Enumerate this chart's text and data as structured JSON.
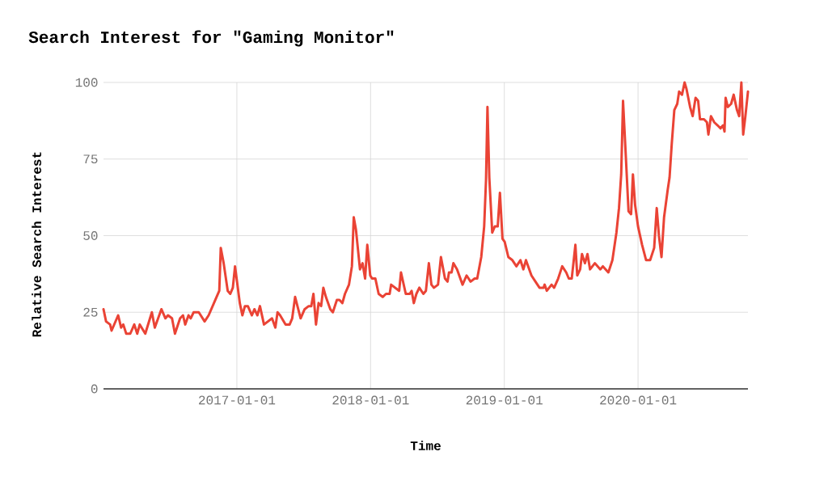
{
  "chart_data": {
    "type": "line",
    "title": "Search Interest for \"Gaming Monitor\"",
    "xlabel": "Time",
    "ylabel": "Relative Search Interest",
    "x": [
      "2016-01-03",
      "2016-01-10",
      "2016-01-21",
      "2016-01-25",
      "2016-02-12",
      "2016-02-20",
      "2016-02-26",
      "2016-03-05",
      "2016-03-16",
      "2016-03-27",
      "2016-04-04",
      "2016-04-11",
      "2016-04-26",
      "2016-05-14",
      "2016-05-22",
      "2016-06-09",
      "2016-06-20",
      "2016-06-27",
      "2016-07-08",
      "2016-07-16",
      "2016-07-30",
      "2016-08-07",
      "2016-08-13",
      "2016-08-22",
      "2016-08-28",
      "2016-09-05",
      "2016-09-19",
      "2016-10-05",
      "2016-10-16",
      "2016-11-03",
      "2016-11-14",
      "2016-11-18",
      "2016-11-26",
      "2016-12-07",
      "2016-12-14",
      "2016-12-21",
      "2016-12-27",
      "2017-01-09",
      "2017-01-16",
      "2017-01-23",
      "2017-01-31",
      "2017-02-11",
      "2017-02-18",
      "2017-02-26",
      "2017-03-05",
      "2017-03-16",
      "2017-03-27",
      "2017-04-07",
      "2017-04-16",
      "2017-04-22",
      "2017-04-29",
      "2017-05-14",
      "2017-05-25",
      "2017-06-01",
      "2017-06-09",
      "2017-06-24",
      "2017-07-05",
      "2017-07-16",
      "2017-07-23",
      "2017-07-29",
      "2017-08-05",
      "2017-08-12",
      "2017-08-19",
      "2017-08-25",
      "2017-09-01",
      "2017-09-13",
      "2017-09-20",
      "2017-10-01",
      "2017-10-08",
      "2017-10-16",
      "2017-10-23",
      "2017-11-03",
      "2017-11-11",
      "2017-11-16",
      "2017-11-22",
      "2017-12-03",
      "2017-12-10",
      "2017-12-17",
      "2017-12-23",
      "2017-12-31",
      "2018-01-05",
      "2018-01-14",
      "2018-01-23",
      "2018-02-03",
      "2018-02-12",
      "2018-02-22",
      "2018-02-26",
      "2018-03-09",
      "2018-03-20",
      "2018-03-25",
      "2018-04-07",
      "2018-04-18",
      "2018-04-23",
      "2018-04-29",
      "2018-05-06",
      "2018-05-14",
      "2018-05-25",
      "2018-06-01",
      "2018-06-09",
      "2018-06-16",
      "2018-06-23",
      "2018-07-04",
      "2018-07-12",
      "2018-07-23",
      "2018-07-30",
      "2018-08-03",
      "2018-08-10",
      "2018-08-15",
      "2018-08-25",
      "2018-09-09",
      "2018-09-20",
      "2018-10-01",
      "2018-10-12",
      "2018-10-19",
      "2018-10-30",
      "2018-11-07",
      "2018-11-12",
      "2018-11-16",
      "2018-11-21",
      "2018-11-29",
      "2018-12-06",
      "2018-12-14",
      "2018-12-20",
      "2018-12-27",
      "2019-01-02",
      "2019-01-12",
      "2019-01-23",
      "2019-02-03",
      "2019-02-14",
      "2019-02-22",
      "2019-03-01",
      "2019-03-16",
      "2019-03-27",
      "2019-04-07",
      "2019-04-18",
      "2019-04-21",
      "2019-04-27",
      "2019-05-10",
      "2019-05-17",
      "2019-05-28",
      "2019-06-08",
      "2019-06-19",
      "2019-06-26",
      "2019-07-04",
      "2019-07-14",
      "2019-07-19",
      "2019-07-27",
      "2019-08-01",
      "2019-08-09",
      "2019-08-16",
      "2019-08-23",
      "2019-09-05",
      "2019-09-20",
      "2019-09-27",
      "2019-10-12",
      "2019-10-23",
      "2019-11-03",
      "2019-11-10",
      "2019-11-16",
      "2019-11-21",
      "2019-11-29",
      "2019-12-06",
      "2019-12-13",
      "2019-12-18",
      "2019-12-24",
      "2020-01-01",
      "2020-01-12",
      "2020-01-23",
      "2020-02-03",
      "2020-02-14",
      "2020-02-21",
      "2020-02-27",
      "2020-03-05",
      "2020-03-12",
      "2020-03-22",
      "2020-03-27",
      "2020-04-02",
      "2020-04-09",
      "2020-04-17",
      "2020-04-22",
      "2020-04-30",
      "2020-05-07",
      "2020-05-12",
      "2020-05-22",
      "2020-05-29",
      "2020-06-06",
      "2020-06-13",
      "2020-06-18",
      "2020-06-29",
      "2020-07-07",
      "2020-07-11",
      "2020-07-18",
      "2020-07-27",
      "2020-08-05",
      "2020-08-13",
      "2020-08-20",
      "2020-08-24",
      "2020-08-27",
      "2020-09-02",
      "2020-09-11",
      "2020-09-18",
      "2020-09-27",
      "2020-10-03",
      "2020-10-09",
      "2020-10-14",
      "2020-10-20",
      "2020-10-27"
    ],
    "series": [
      {
        "color": "#ea4335",
        "values": [
          26,
          22,
          21,
          19,
          24,
          20,
          21,
          18,
          18,
          21,
          18,
          21,
          18,
          25,
          20,
          26,
          23,
          24,
          23,
          18,
          23,
          24,
          21,
          24,
          23,
          25,
          25,
          22,
          24,
          29,
          32,
          46,
          41,
          32,
          31,
          33,
          40,
          28,
          24,
          27,
          27,
          24,
          26,
          24,
          27,
          21,
          22,
          23,
          20,
          25,
          24,
          21,
          21,
          23,
          30,
          23,
          26,
          27,
          27,
          31,
          21,
          28,
          27,
          33,
          30,
          26,
          25,
          29,
          29,
          28,
          31,
          34,
          40,
          56,
          52,
          39,
          41,
          36,
          47,
          37,
          36,
          36,
          31,
          30,
          31,
          31,
          34,
          33,
          32,
          38,
          31,
          31,
          32,
          28,
          31,
          33,
          31,
          32,
          41,
          34,
          33,
          34,
          43,
          36,
          35,
          38,
          38,
          41,
          39,
          34,
          37,
          35,
          36,
          36,
          43,
          53,
          68,
          92,
          69,
          51,
          53,
          53,
          64,
          49,
          48,
          43,
          42,
          40,
          42,
          39,
          42,
          37,
          35,
          33,
          33,
          34,
          32,
          34,
          33,
          36,
          40,
          38,
          36,
          36,
          47,
          37,
          39,
          44,
          41,
          44,
          39,
          41,
          39,
          40,
          38,
          42,
          51,
          59,
          70,
          94,
          75,
          58,
          57,
          70,
          60,
          53,
          47,
          42,
          42,
          46,
          59,
          50,
          43,
          56,
          65,
          69,
          80,
          91,
          93,
          97,
          96,
          100,
          98,
          92,
          89,
          95,
          94,
          88,
          88,
          87,
          83,
          89,
          87,
          86,
          85,
          86,
          84,
          95,
          92,
          93,
          96,
          91,
          89,
          100,
          83,
          89,
          97
        ]
      }
    ],
    "xlim": [
      "2016-01-03",
      "2020-10-27"
    ],
    "ylim": [
      0,
      100
    ],
    "xticks": [
      "2017-01-01",
      "2018-01-01",
      "2019-01-01",
      "2020-01-01"
    ],
    "yticks": [
      0,
      25,
      50,
      75,
      100
    ],
    "grid": true,
    "line_style": "solid"
  }
}
